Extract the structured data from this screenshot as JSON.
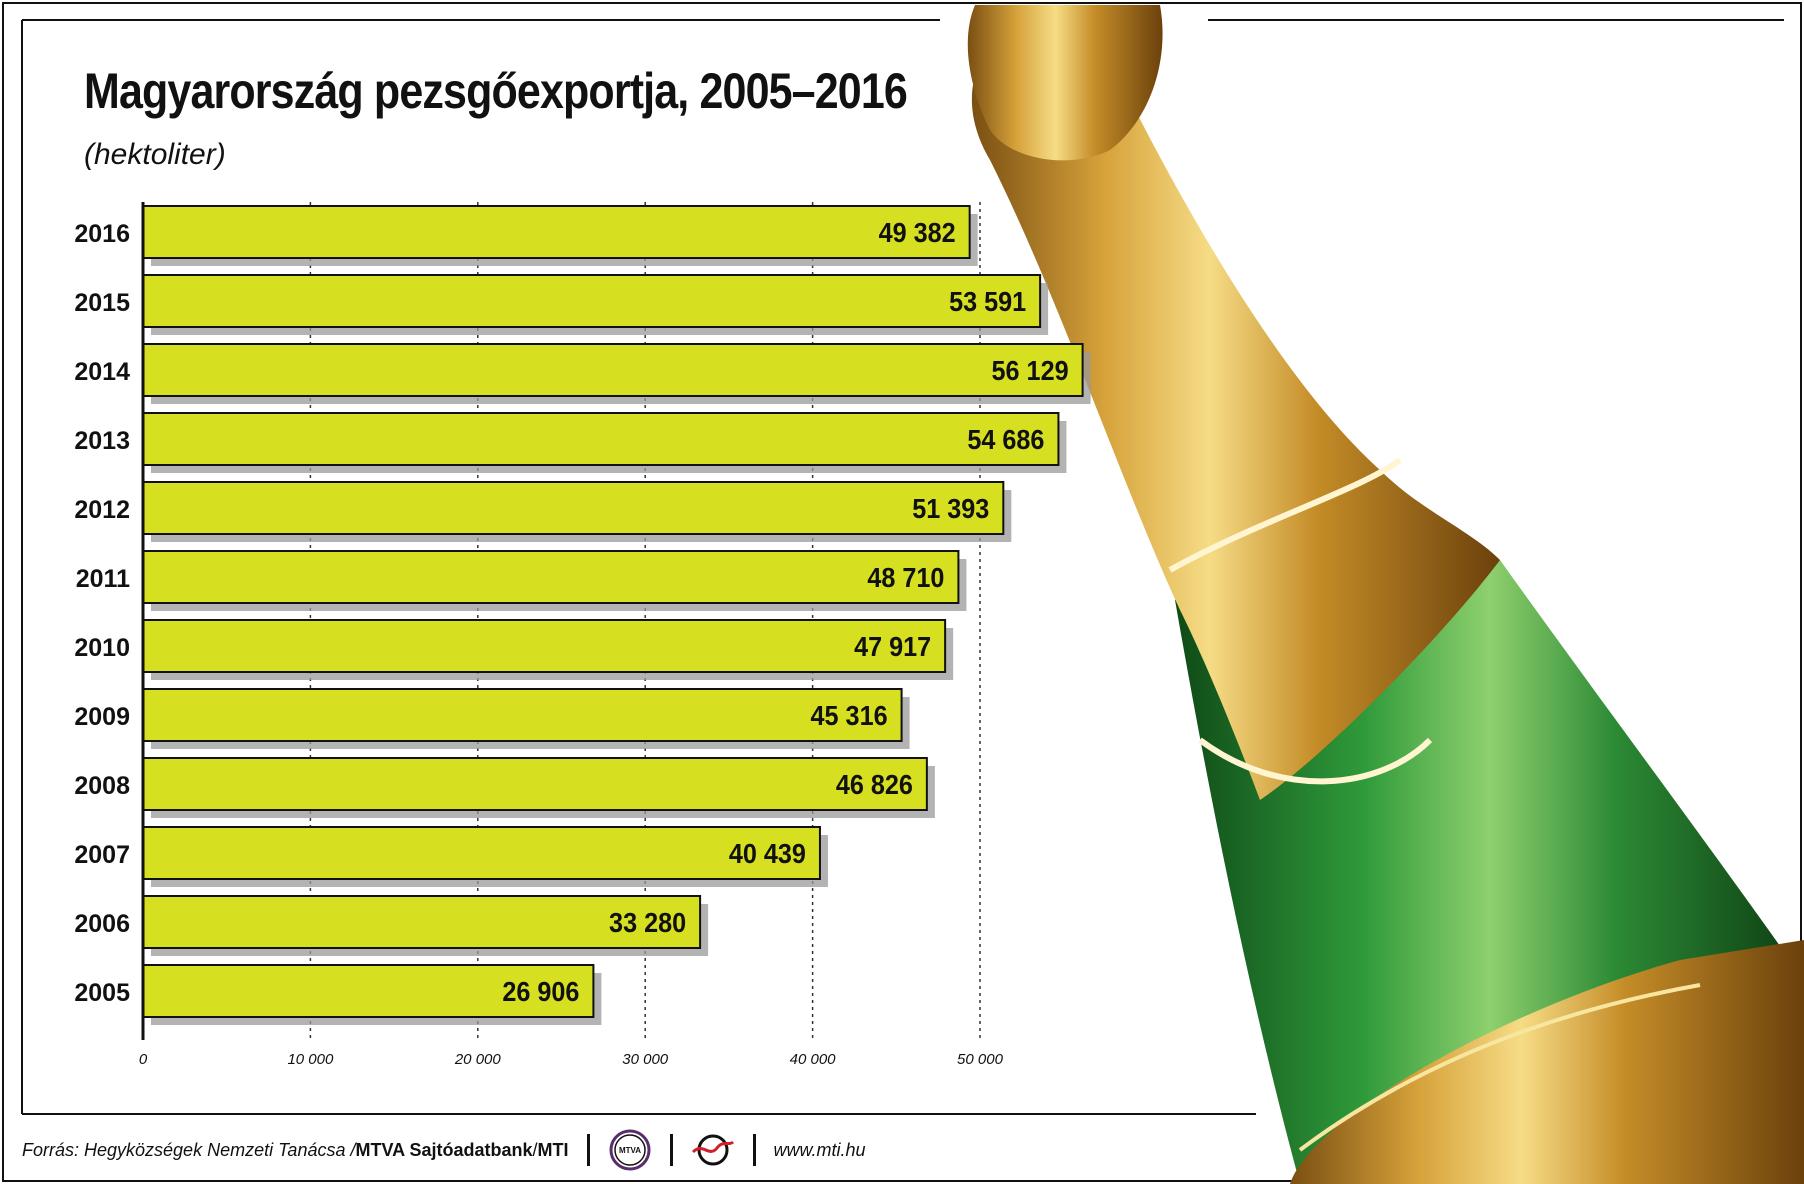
{
  "title": "Magyarország pezsgőexportja, 2005–2016",
  "subtitle": "(hektoliter)",
  "chart_data": {
    "type": "bar",
    "orientation": "horizontal",
    "title": "Magyarország pezsgőexportja, 2005–2016",
    "unit": "(hektoliter)",
    "categories": [
      "2016",
      "2015",
      "2014",
      "2013",
      "2012",
      "2011",
      "2010",
      "2009",
      "2008",
      "2007",
      "2006",
      "2005"
    ],
    "values": [
      49382,
      53591,
      56129,
      54686,
      51393,
      48710,
      47917,
      45316,
      46826,
      40439,
      33280,
      26906
    ],
    "value_labels": [
      "49 382",
      "53 591",
      "56 129",
      "54 686",
      "51 393",
      "48 710",
      "47 917",
      "45 316",
      "46 826",
      "40 439",
      "33 280",
      "26 906"
    ],
    "xlim": [
      0,
      50000
    ],
    "x_ticks": [
      0,
      10000,
      20000,
      30000,
      40000,
      50000
    ],
    "x_tick_labels": [
      "0",
      "10 000",
      "20 000",
      "30 000",
      "40 000",
      "50 000"
    ],
    "grid": "dashed vertical",
    "bar_color": "#d6e021",
    "shadow_color": "#9a9a9a"
  },
  "footer": {
    "source_prefix": "Forrás: Hegyközségek Nemzeti Tanácsa / ",
    "agency": "MTVA Sajtóadatbank",
    "slash": " / ",
    "mti": "MTI",
    "mtva_logo_text": "MTVA",
    "url": "www.mti.hu"
  },
  "colors": {
    "bottle_green": "#1f7a2a",
    "bottle_gold": "#c9962e",
    "frame": "#111111"
  }
}
